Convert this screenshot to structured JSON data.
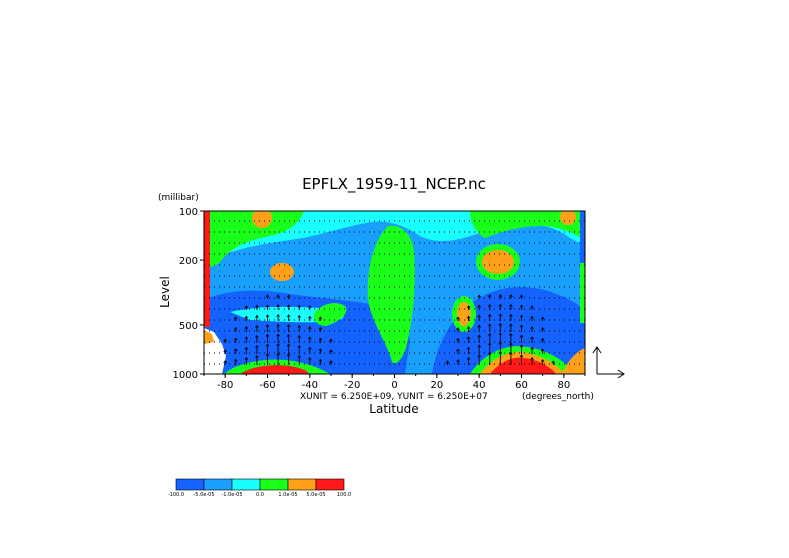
{
  "chart_data": {
    "type": "heatmap",
    "title": "EPFLX_1959-11_NCEP.nc",
    "xlabel": "Latitude",
    "x_unit_label": "(degrees_north)",
    "ylabel": "Level",
    "y_unit_label": "(millibar)",
    "xlim": [
      -90,
      90
    ],
    "ylim": [
      1000,
      100
    ],
    "y_scale": "log",
    "x_ticks": [
      -80,
      -60,
      -40,
      -20,
      0,
      20,
      40,
      60,
      80
    ],
    "x_tick_labels": [
      "-80",
      "-60",
      "-40",
      "-20",
      "0",
      "20",
      "40",
      "60",
      "80"
    ],
    "y_ticks": [
      100,
      200,
      500,
      1000
    ],
    "y_tick_labels": [
      "100",
      "200",
      "500",
      "1000"
    ],
    "vector_scale_text": "XUNIT = 6.250E+09, YUNIT = 6.250E+07",
    "colorbar": {
      "colors": [
        "#1463ff",
        "#19a0ff",
        "#19ffff",
        "#19ff19",
        "#ffa019",
        "#ff1919"
      ],
      "tick_labels": [
        "-100.0",
        "-5.0e-05",
        "-1.0e-05",
        "0.0",
        "1.0e-05",
        "5.0e-05",
        "100.0"
      ]
    },
    "grid": true,
    "legend": "bottom-left colorbar"
  }
}
